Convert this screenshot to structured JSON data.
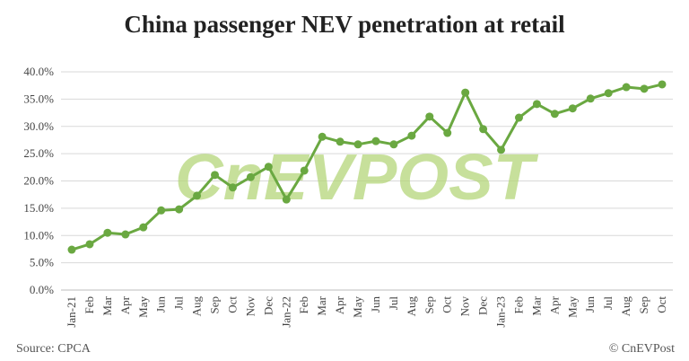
{
  "chart_data": {
    "type": "line",
    "title": "China passenger NEV penetration at retail",
    "xlabel": "",
    "ylabel": "",
    "categories": [
      "Jan-21",
      "Feb",
      "Mar",
      "Apr",
      "May",
      "Jun",
      "Jul",
      "Aug",
      "Sep",
      "Oct",
      "Nov",
      "Dec",
      "Jan-22",
      "Feb",
      "Mar",
      "Apr",
      "May",
      "Jun",
      "Jul",
      "Aug",
      "Sep",
      "Oct",
      "Nov",
      "Dec",
      "Jan-23",
      "Feb",
      "Mar",
      "Apr",
      "May",
      "Jun",
      "Jul",
      "Aug",
      "Sep",
      "Oct"
    ],
    "series": [
      {
        "values": [
          7.4,
          8.4,
          10.5,
          10.2,
          11.5,
          14.6,
          14.8,
          17.3,
          21.1,
          18.8,
          20.7,
          22.6,
          16.6,
          21.9,
          28.1,
          27.2,
          26.7,
          27.3,
          26.7,
          28.3,
          31.8,
          28.8,
          36.2,
          29.5,
          25.7,
          31.6,
          34.1,
          32.3,
          33.3,
          35.1,
          36.1,
          37.2,
          36.9,
          37.7
        ],
        "color": "#6aa841"
      }
    ],
    "ylim": [
      0,
      40
    ],
    "yticks": [
      "0.0%",
      "5.0%",
      "10.0%",
      "15.0%",
      "20.0%",
      "25.0%",
      "30.0%",
      "35.0%",
      "40.0%"
    ],
    "grid": true,
    "legend": "none"
  },
  "watermark": "CnEVPOST",
  "source": "Source: CPCA",
  "copyright": "© CnEVPost"
}
